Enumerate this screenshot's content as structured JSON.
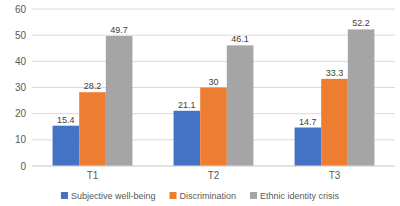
{
  "chart_data": {
    "type": "bar",
    "categories": [
      "T1",
      "T2",
      "T3"
    ],
    "series": [
      {
        "name": "Subjective well-being",
        "color": "#4472c4",
        "values": [
          15.4,
          21.1,
          14.7
        ]
      },
      {
        "name": "Discrimination",
        "color": "#ed7d31",
        "values": [
          28.2,
          30,
          33.3
        ]
      },
      {
        "name": "Ethnic identity crisis",
        "color": "#a5a5a5",
        "values": [
          49.7,
          46.1,
          52.2
        ]
      }
    ],
    "ylim": [
      0,
      60
    ],
    "yticks": [
      0,
      10,
      20,
      30,
      40,
      50,
      60
    ],
    "grid": true,
    "data_labels": true,
    "legend": "bottom"
  }
}
